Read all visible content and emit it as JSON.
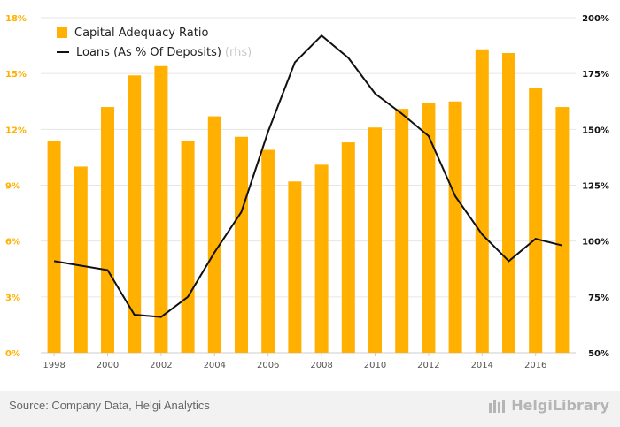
{
  "chart_data": {
    "type": "bar+line",
    "categories": [
      "1998",
      "1999",
      "2000",
      "2001",
      "2002",
      "2003",
      "2004",
      "2005",
      "2006",
      "2007",
      "2008",
      "2009",
      "2010",
      "2011",
      "2012",
      "2013",
      "2014",
      "2015",
      "2016",
      "2017"
    ],
    "x_tick_labels": [
      "1998",
      "2000",
      "2002",
      "2004",
      "2006",
      "2008",
      "2010",
      "2012",
      "2014",
      "2016"
    ],
    "series": [
      {
        "name": "Capital Adequacy Ratio",
        "type": "bar",
        "axis": "left",
        "color": "#FFB000",
        "values": [
          11.4,
          10.0,
          13.2,
          14.9,
          15.4,
          11.4,
          12.7,
          11.6,
          10.9,
          9.2,
          10.1,
          11.3,
          12.1,
          13.1,
          13.4,
          13.5,
          16.3,
          16.1,
          14.2,
          13.2
        ]
      },
      {
        "name": "Loans (As % Of Deposits)",
        "note": "(rhs)",
        "type": "line",
        "axis": "right",
        "color": "#111111",
        "values": [
          91,
          89,
          87,
          67,
          66,
          75,
          95,
          113,
          149,
          180,
          192,
          182,
          166,
          157,
          147,
          120,
          103,
          91,
          101,
          98
        ]
      }
    ],
    "left_axis": {
      "min": 0,
      "max": 18,
      "ticks": [
        "0%",
        "3%",
        "6%",
        "9%",
        "12%",
        "15%",
        "18%"
      ],
      "color": "#FFB000"
    },
    "right_axis": {
      "min": 50,
      "max": 200,
      "ticks": [
        "50%",
        "75%",
        "100%",
        "125%",
        "150%",
        "175%",
        "200%"
      ],
      "color": "#111111"
    },
    "grid": true,
    "legend_position": "top-left"
  },
  "footer": {
    "source": "Source: Company Data, Helgi Analytics",
    "logo_text": "HelgiLibrary"
  }
}
